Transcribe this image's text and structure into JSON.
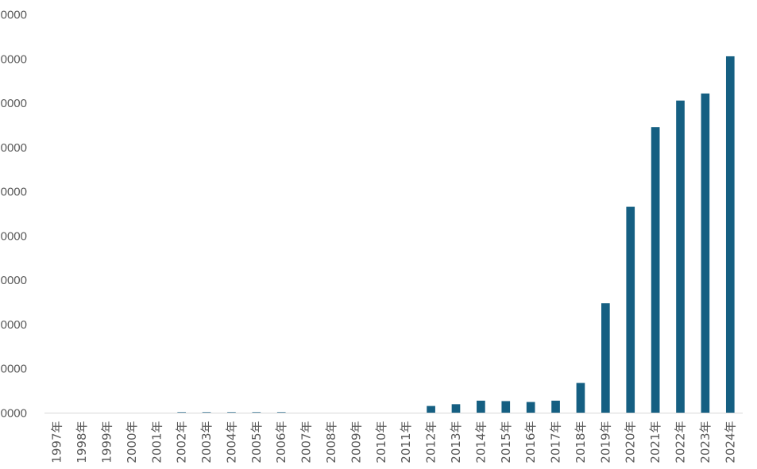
{
  "chart_data": {
    "type": "bar",
    "title": "",
    "xlabel": "",
    "ylabel": "",
    "categories": [
      "1997年",
      "1998年",
      "1999年",
      "2000年",
      "2001年",
      "2002年",
      "2003年",
      "2004年",
      "2005年",
      "2006年",
      "2007年",
      "2008年",
      "2009年",
      "2010年",
      "2011年",
      "2012年",
      "2013年",
      "2014年",
      "2015年",
      "2016年",
      "2017年",
      "2018年",
      "2019年",
      "2020年",
      "2021年",
      "2022年",
      "2023年",
      "2024年"
    ],
    "series": [
      {
        "color": "#155F82",
        "values": [
          0,
          0,
          0,
          0,
          0,
          100,
          100,
          100,
          100,
          100,
          0,
          0,
          0,
          0,
          0,
          800,
          1000,
          1400,
          1350,
          1250,
          1400,
          3400,
          12400,
          23300,
          32300,
          35300,
          36100,
          40300
        ]
      }
    ],
    "y_tick_labels": [
      "0000",
      "0000",
      "0000",
      "0000",
      "0000",
      "0000",
      "0000",
      "0000",
      "0000",
      "0000"
    ],
    "ylim": [
      0,
      45000
    ],
    "grid": false,
    "legend": "none"
  }
}
